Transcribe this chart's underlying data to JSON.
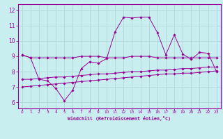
{
  "xlabel": "Windchill (Refroidissement éolien,°C)",
  "bg_color": "#c8eef0",
  "grid_color": "#b0d8d8",
  "line_color": "#990099",
  "x_ticks": [
    0,
    1,
    2,
    3,
    4,
    5,
    6,
    7,
    8,
    9,
    10,
    11,
    12,
    13,
    14,
    15,
    16,
    17,
    18,
    19,
    20,
    21,
    22,
    23
  ],
  "y_ticks": [
    6,
    7,
    8,
    9,
    10,
    11,
    12
  ],
  "ylim": [
    5.6,
    12.4
  ],
  "xlim": [
    -0.5,
    23.5
  ],
  "series1_x": [
    0,
    1,
    2,
    3,
    4,
    5,
    6,
    7,
    8,
    9,
    10,
    11,
    12,
    13,
    14,
    15,
    16,
    17,
    18,
    19,
    20,
    21,
    22,
    23
  ],
  "series1_y": [
    9.1,
    8.9,
    8.9,
    8.9,
    8.9,
    8.9,
    8.9,
    9.0,
    9.0,
    9.0,
    8.9,
    8.9,
    8.9,
    9.0,
    9.0,
    9.0,
    8.9,
    8.9,
    8.9,
    8.9,
    8.9,
    8.9,
    8.9,
    8.9
  ],
  "series2_x": [
    0,
    1,
    2,
    3,
    4,
    5,
    6,
    7,
    8,
    9,
    10,
    11,
    12,
    13,
    14,
    15,
    16,
    17,
    18,
    19,
    20,
    21,
    22,
    23
  ],
  "series2_y": [
    7.5,
    7.5,
    7.55,
    7.6,
    7.65,
    7.65,
    7.7,
    7.75,
    7.8,
    7.85,
    7.85,
    7.9,
    7.95,
    8.0,
    8.0,
    8.05,
    8.1,
    8.1,
    8.15,
    8.2,
    8.2,
    8.25,
    8.3,
    8.3
  ],
  "series3_x": [
    0,
    1,
    2,
    3,
    4,
    5,
    6,
    7,
    8,
    9,
    10,
    11,
    12,
    13,
    14,
    15,
    16,
    17,
    18,
    19,
    20,
    21,
    22,
    23
  ],
  "series3_y": [
    7.0,
    7.05,
    7.1,
    7.15,
    7.2,
    7.25,
    7.3,
    7.35,
    7.4,
    7.45,
    7.5,
    7.55,
    7.6,
    7.65,
    7.7,
    7.75,
    7.8,
    7.85,
    7.85,
    7.9,
    7.9,
    7.95,
    8.0,
    8.05
  ],
  "series4_x": [
    0,
    1,
    2,
    3,
    4,
    5,
    6,
    7,
    8,
    9,
    10,
    11,
    12,
    13,
    14,
    15,
    16,
    17,
    18,
    19,
    20,
    21,
    22,
    23
  ],
  "series4_y": [
    9.1,
    8.9,
    7.5,
    7.4,
    6.9,
    6.1,
    6.8,
    8.2,
    8.65,
    8.55,
    8.85,
    10.6,
    11.55,
    11.5,
    11.55,
    11.55,
    10.55,
    9.1,
    10.4,
    9.15,
    8.8,
    9.25,
    9.2,
    8.0
  ]
}
